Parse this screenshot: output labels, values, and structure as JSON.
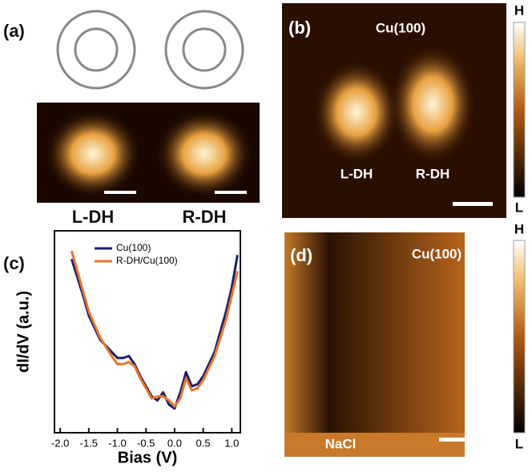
{
  "panels": {
    "a": {
      "label": "(a)",
      "left": "L-DH",
      "right": "R-DH"
    },
    "b": {
      "label": "(b)",
      "substrate": "Cu(100)",
      "left": "L-DH",
      "right": "R-DH",
      "scale_high": "H",
      "scale_low": "L"
    },
    "c": {
      "label": "(c)"
    },
    "d": {
      "label": "(d)",
      "substrate": "Cu(100)",
      "island": "NaCl",
      "scale_high": "H",
      "scale_low": "L"
    }
  },
  "chart_data": {
    "type": "line",
    "x_label": "Bias (V)",
    "y_label": "dI/dV (a.u.)",
    "x": [
      -1.8,
      -1.6,
      -1.5,
      -1.3,
      -1.1,
      -1.0,
      -0.9,
      -0.8,
      -0.7,
      -0.6,
      -0.5,
      -0.4,
      -0.3,
      -0.2,
      -0.1,
      0.0,
      0.1,
      0.2,
      0.3,
      0.4,
      0.5,
      0.7,
      0.9,
      1.0,
      1.1
    ],
    "series": [
      {
        "name": "Cu(100)",
        "color": "#1b1f6e",
        "values": [
          0.86,
          0.68,
          0.58,
          0.46,
          0.4,
          0.37,
          0.37,
          0.38,
          0.34,
          0.28,
          0.23,
          0.18,
          0.16,
          0.2,
          0.14,
          0.12,
          0.2,
          0.3,
          0.23,
          0.24,
          0.28,
          0.4,
          0.6,
          0.72,
          0.88
        ]
      },
      {
        "name": "R-DH/Cu(100)",
        "color": "#e8762b",
        "values": [
          0.9,
          0.7,
          0.6,
          0.47,
          0.38,
          0.34,
          0.34,
          0.35,
          0.33,
          0.27,
          0.22,
          0.17,
          0.18,
          0.18,
          0.16,
          0.13,
          0.17,
          0.27,
          0.21,
          0.22,
          0.26,
          0.38,
          0.56,
          0.68,
          0.8
        ]
      }
    ],
    "xlim": [
      -2.1,
      1.15
    ],
    "ylim": [
      0,
      1
    ],
    "xticks": [
      {
        "value": -2,
        "label": "-2.0"
      },
      -1.5,
      {
        "value": -1,
        "label": "-1.0"
      },
      -0.5,
      {
        "value": 0,
        "label": "0.0"
      },
      0.5,
      {
        "value": 1,
        "label": "1.0"
      }
    ]
  }
}
